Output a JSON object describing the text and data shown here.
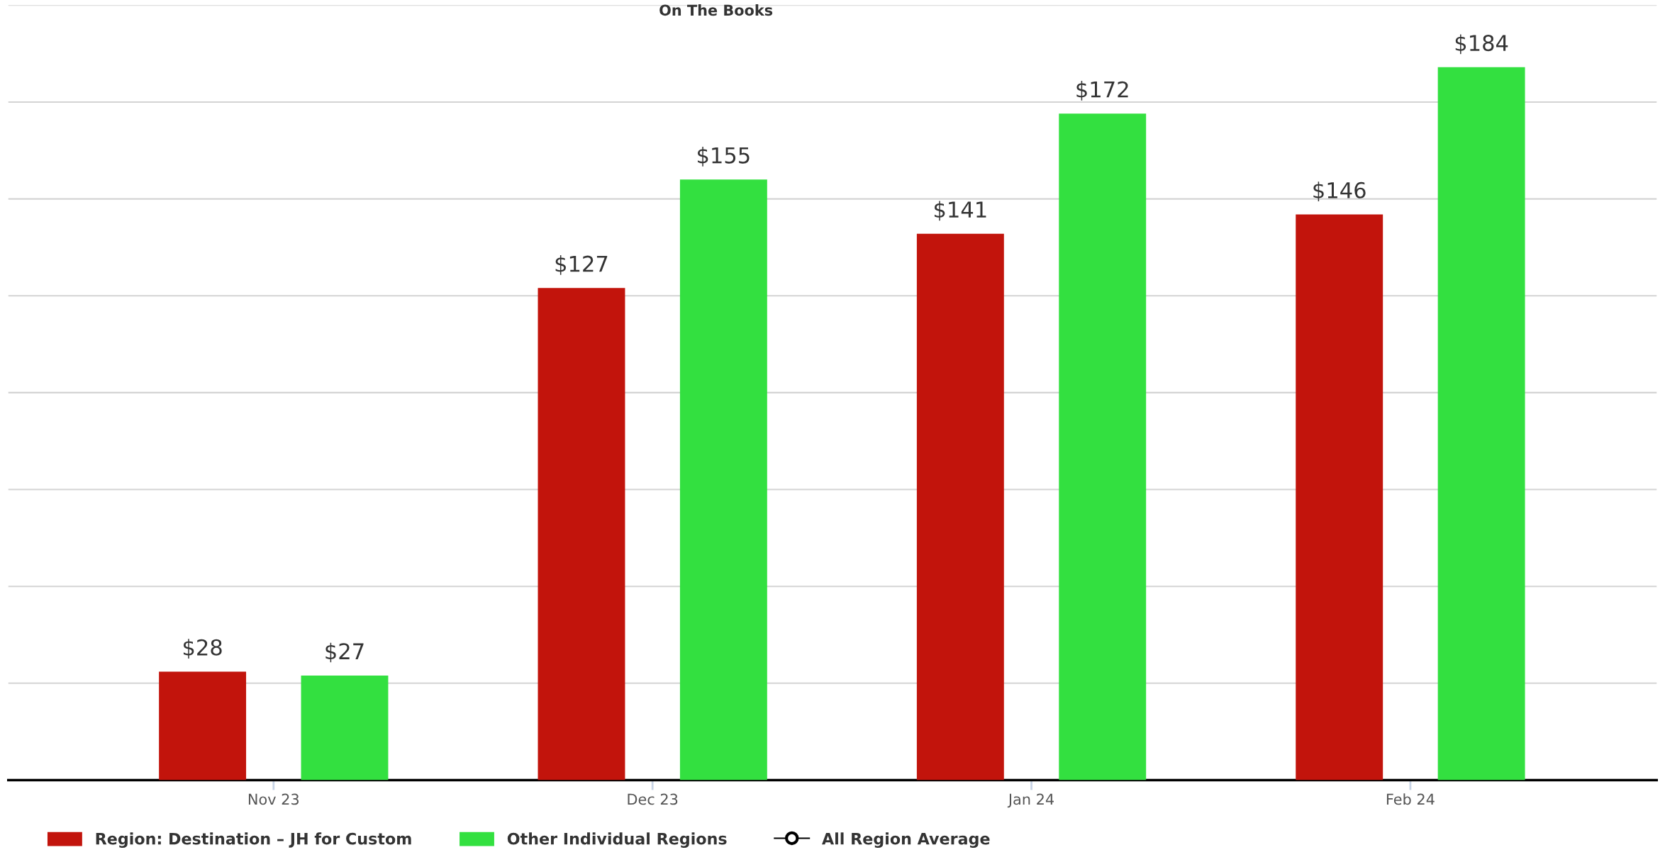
{
  "chart_data": {
    "type": "bar",
    "title": "On The Books",
    "categories": [
      "Nov 23",
      "Dec 23",
      "Jan 24",
      "Feb 24"
    ],
    "series": [
      {
        "name": "Region: Destination – JH for Custom",
        "color": "#c2140c",
        "values": [
          28,
          127,
          141,
          146
        ],
        "value_labels": [
          "$28",
          "$127",
          "$141",
          "$146"
        ]
      },
      {
        "name": "Other Individual Regions",
        "color": "#33e040",
        "values": [
          27,
          155,
          172,
          184
        ],
        "value_labels": [
          "$27",
          "$155",
          "$172",
          "$184"
        ]
      },
      {
        "name": "All Region Average",
        "type": "line",
        "color": "#000000",
        "marker": "circle",
        "values": [
          null,
          null,
          null,
          null
        ]
      }
    ],
    "ylim": [
      0,
      200
    ],
    "yticks": [
      {
        "value": 0,
        "label": null
      },
      {
        "value": 25,
        "label": null
      },
      {
        "value": 50,
        "label": null
      },
      {
        "value": 75,
        "label": null
      },
      {
        "value": 100,
        "label": null
      },
      {
        "value": 125,
        "label": null
      },
      {
        "value": 150,
        "label": null
      },
      {
        "value": 175,
        "label": null
      },
      {
        "value": 200,
        "label": null
      }
    ],
    "grid": "y",
    "legend": "bottom"
  }
}
